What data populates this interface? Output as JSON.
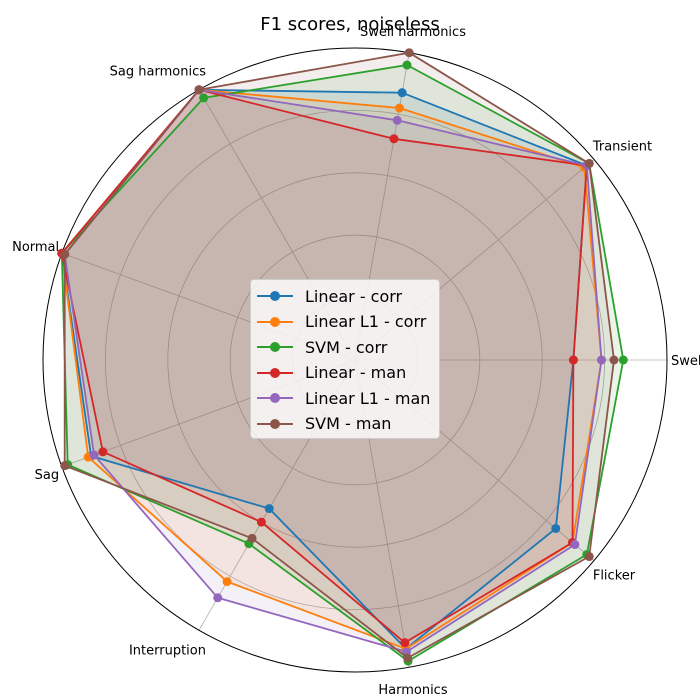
{
  "chart_data": {
    "type": "radar",
    "title": "F1 scores, noiseless",
    "axes": [
      "Swell",
      "Transient",
      "Swell harmonics",
      "Sag harmonics",
      "Normal",
      "Sag",
      "Interruption",
      "Harmonics",
      "Flicker"
    ],
    "rlim": [
      0,
      1
    ],
    "grid": true,
    "legend_position": "center",
    "series": [
      {
        "name": "Linear - corr",
        "color": "#1f77b4",
        "values": [
          0.7,
          0.97,
          0.87,
          1.0,
          1.0,
          0.9,
          0.55,
          0.94,
          0.84
        ]
      },
      {
        "name": "Linear L1 - corr",
        "color": "#ff7f0e",
        "values": [
          0.79,
          0.96,
          0.82,
          1.0,
          1.0,
          0.91,
          0.82,
          0.94,
          0.91
        ]
      },
      {
        "name": "SVM - corr",
        "color": "#2ca02c",
        "values": [
          0.86,
          0.98,
          0.96,
          0.97,
          1.0,
          0.98,
          0.68,
          0.98,
          0.97
        ]
      },
      {
        "name": "Linear - man",
        "color": "#d62728",
        "values": [
          0.7,
          0.97,
          0.72,
          1.0,
          1.0,
          0.86,
          0.6,
          0.92,
          0.91
        ]
      },
      {
        "name": "Linear L1 - man",
        "color": "#9467bd",
        "values": [
          0.79,
          0.97,
          0.78,
          1.0,
          0.99,
          0.89,
          0.88,
          0.95,
          0.92
        ]
      },
      {
        "name": "SVM - man",
        "color": "#8c564b",
        "values": [
          0.83,
          0.98,
          1.0,
          1.0,
          0.99,
          0.99,
          0.66,
          0.97,
          0.98
        ]
      }
    ]
  }
}
